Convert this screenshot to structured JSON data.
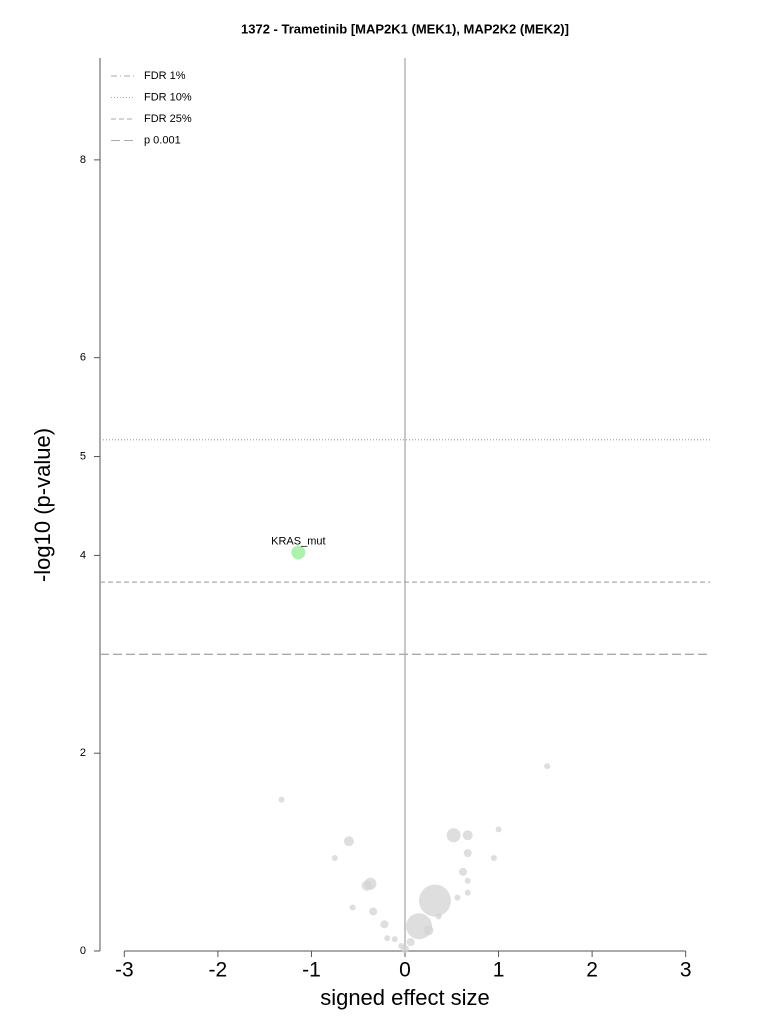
{
  "chart_data": {
    "type": "scatter",
    "title": "1372 - Trametinib [MAP2K1 (MEK1), MAP2K2 (MEK2)]",
    "xlabel": "signed effect size",
    "ylabel": "-log10 (p-value)",
    "xlim": [
      -3.26,
      3.26
    ],
    "ylim": [
      0,
      9.03
    ],
    "xticks": [
      -3,
      -2,
      -1,
      0,
      1,
      2,
      3
    ],
    "yticks": [
      0,
      2,
      4,
      5,
      6,
      8
    ],
    "x": [
      -1.14,
      1.52,
      -1.32,
      -0.6,
      0.52,
      0.67,
      1.0,
      0.67,
      -0.75,
      0.95,
      -0.37,
      -0.41,
      0.62,
      0.67,
      0.67,
      -0.56,
      -0.34,
      0.32,
      0.56,
      -0.22,
      0.15,
      0.36,
      -0.19,
      -0.11,
      0.25,
      0.06,
      -0.04,
      0.0
    ],
    "y": [
      4.03,
      1.87,
      1.53,
      1.11,
      1.17,
      1.17,
      1.23,
      0.99,
      0.94,
      0.94,
      0.68,
      0.66,
      0.8,
      0.71,
      0.59,
      0.44,
      0.4,
      0.51,
      0.54,
      0.27,
      0.25,
      0.35,
      0.13,
      0.12,
      0.21,
      0.09,
      0.05,
      0.02
    ],
    "sizes": [
      7,
      3,
      3,
      5,
      7,
      5,
      3,
      4,
      3,
      3,
      6,
      5,
      4,
      3,
      3,
      3,
      4,
      16,
      3,
      4,
      13,
      3,
      3,
      3,
      5,
      4,
      3,
      4
    ],
    "colors": [
      "#90ee90",
      "#d3d3d3",
      "#d3d3d3",
      "#d3d3d3",
      "#d3d3d3",
      "#d3d3d3",
      "#d3d3d3",
      "#d3d3d3",
      "#d3d3d3",
      "#d3d3d3",
      "#d3d3d3",
      "#d3d3d3",
      "#d3d3d3",
      "#d3d3d3",
      "#d3d3d3",
      "#d3d3d3",
      "#d3d3d3",
      "#d3d3d3",
      "#d3d3d3",
      "#d3d3d3",
      "#d3d3d3",
      "#d3d3d3",
      "#d3d3d3",
      "#d3d3d3",
      "#d3d3d3",
      "#d3d3d3",
      "#d3d3d3",
      "#d3d3d3"
    ],
    "point_labels": [
      "KRAS_mut",
      null,
      null,
      null,
      null,
      null,
      null,
      null,
      null,
      null,
      null,
      null,
      null,
      null,
      null,
      null,
      null,
      null,
      null,
      null,
      null,
      null,
      null,
      null,
      null,
      null,
      null,
      null
    ],
    "thresholds": [
      {
        "name": "FDR 1%",
        "value": null,
        "dash": "6 3 1 3",
        "color": "#aaaaaa"
      },
      {
        "name": "FDR 10%",
        "value": 5.17,
        "dash": "1 2",
        "color": "#aaaaaa"
      },
      {
        "name": "FDR 25%",
        "value": 3.73,
        "dash": "5 3",
        "color": "#aaaaaa"
      },
      {
        "name": "p 0.001",
        "value": 3.0,
        "dash": "9 4",
        "color": "#aaaaaa"
      }
    ]
  }
}
